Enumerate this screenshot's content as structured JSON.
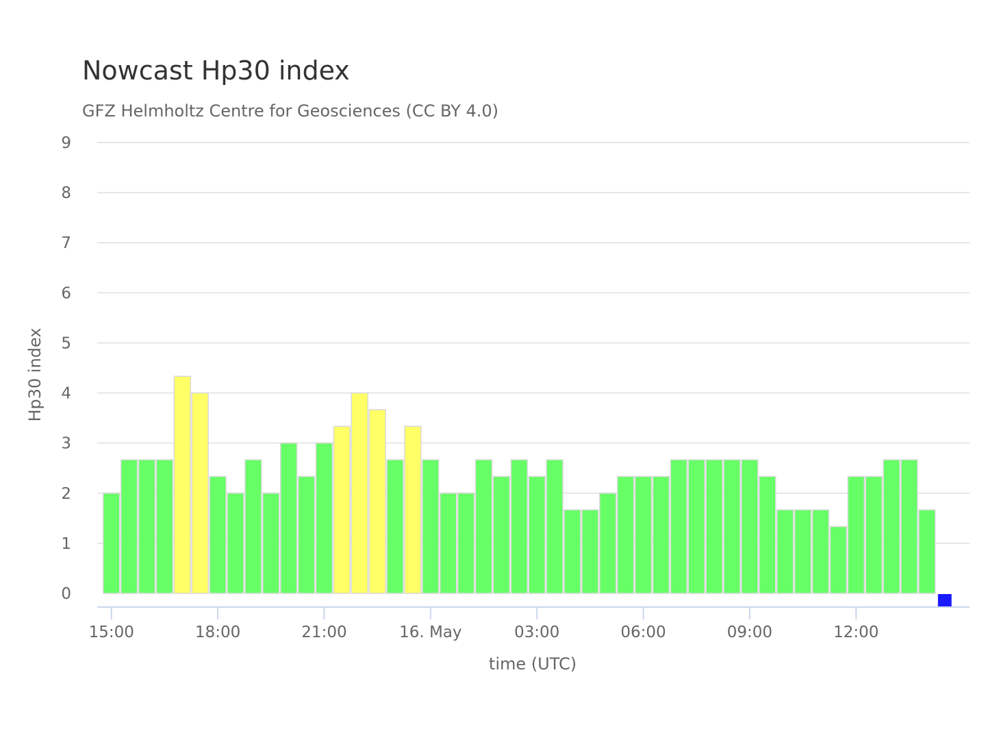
{
  "chart_data": {
    "type": "bar",
    "title": "Nowcast Hp30 index",
    "subtitle": "GFZ Helmholtz Centre for Geosciences (CC BY 4.0)",
    "xlabel": "time (UTC)",
    "ylabel": "Hp30 index",
    "ylim": [
      0,
      9
    ],
    "y_ticks": [
      0,
      1,
      2,
      3,
      4,
      5,
      6,
      7,
      8,
      9
    ],
    "grid": true,
    "legend": "none",
    "x_range_hours": [
      14.6,
      39.2
    ],
    "x_ticks": [
      {
        "hours": 15,
        "label": "15:00"
      },
      {
        "hours": 18,
        "label": "18:00"
      },
      {
        "hours": 21,
        "label": "21:00"
      },
      {
        "hours": 24,
        "label": "16. May"
      },
      {
        "hours": 27,
        "label": "03:00"
      },
      {
        "hours": 30,
        "label": "06:00"
      },
      {
        "hours": 33,
        "label": "09:00"
      },
      {
        "hours": 36,
        "label": "12:00"
      }
    ],
    "colors": {
      "green": "#66ff66",
      "yellow": "#ffff66",
      "blue": "#1a1aff"
    },
    "series": [
      {
        "bar_width_hours": 0.5,
        "bars": [
          {
            "x": 15.0,
            "value": 2.0,
            "color": "green"
          },
          {
            "x": 15.5,
            "value": 2.667,
            "color": "green"
          },
          {
            "x": 16.0,
            "value": 2.667,
            "color": "green"
          },
          {
            "x": 16.5,
            "value": 2.667,
            "color": "green"
          },
          {
            "x": 17.0,
            "value": 4.333,
            "color": "yellow"
          },
          {
            "x": 17.5,
            "value": 4.0,
            "color": "yellow"
          },
          {
            "x": 18.0,
            "value": 2.333,
            "color": "green"
          },
          {
            "x": 18.5,
            "value": 2.0,
            "color": "green"
          },
          {
            "x": 19.0,
            "value": 2.667,
            "color": "green"
          },
          {
            "x": 19.5,
            "value": 2.0,
            "color": "green"
          },
          {
            "x": 20.0,
            "value": 3.0,
            "color": "green"
          },
          {
            "x": 20.5,
            "value": 2.333,
            "color": "green"
          },
          {
            "x": 21.0,
            "value": 3.0,
            "color": "green"
          },
          {
            "x": 21.5,
            "value": 3.333,
            "color": "yellow"
          },
          {
            "x": 22.0,
            "value": 4.0,
            "color": "yellow"
          },
          {
            "x": 22.5,
            "value": 3.667,
            "color": "yellow"
          },
          {
            "x": 23.0,
            "value": 2.667,
            "color": "green"
          },
          {
            "x": 23.5,
            "value": 3.333,
            "color": "yellow"
          },
          {
            "x": 24.0,
            "value": 2.667,
            "color": "green"
          },
          {
            "x": 24.5,
            "value": 2.0,
            "color": "green"
          },
          {
            "x": 25.0,
            "value": 2.0,
            "color": "green"
          },
          {
            "x": 25.5,
            "value": 2.667,
            "color": "green"
          },
          {
            "x": 26.0,
            "value": 2.333,
            "color": "green"
          },
          {
            "x": 26.5,
            "value": 2.667,
            "color": "green"
          },
          {
            "x": 27.0,
            "value": 2.333,
            "color": "green"
          },
          {
            "x": 27.5,
            "value": 2.667,
            "color": "green"
          },
          {
            "x": 28.0,
            "value": 1.667,
            "color": "green"
          },
          {
            "x": 28.5,
            "value": 1.667,
            "color": "green"
          },
          {
            "x": 29.0,
            "value": 2.0,
            "color": "green"
          },
          {
            "x": 29.5,
            "value": 2.333,
            "color": "green"
          },
          {
            "x": 30.0,
            "value": 2.333,
            "color": "green"
          },
          {
            "x": 30.5,
            "value": 2.333,
            "color": "green"
          },
          {
            "x": 31.0,
            "value": 2.667,
            "color": "green"
          },
          {
            "x": 31.5,
            "value": 2.667,
            "color": "green"
          },
          {
            "x": 32.0,
            "value": 2.667,
            "color": "green"
          },
          {
            "x": 32.5,
            "value": 2.667,
            "color": "green"
          },
          {
            "x": 33.0,
            "value": 2.667,
            "color": "green"
          },
          {
            "x": 33.5,
            "value": 2.333,
            "color": "green"
          },
          {
            "x": 34.0,
            "value": 1.667,
            "color": "green"
          },
          {
            "x": 34.5,
            "value": 1.667,
            "color": "green"
          },
          {
            "x": 35.0,
            "value": 1.667,
            "color": "green"
          },
          {
            "x": 35.5,
            "value": 1.333,
            "color": "green"
          },
          {
            "x": 36.0,
            "value": 2.333,
            "color": "green"
          },
          {
            "x": 36.5,
            "value": 2.333,
            "color": "green"
          },
          {
            "x": 37.0,
            "value": 2.667,
            "color": "green"
          },
          {
            "x": 37.5,
            "value": 2.667,
            "color": "green"
          },
          {
            "x": 38.0,
            "value": 1.667,
            "color": "green"
          },
          {
            "x": 38.5,
            "value": 0.0,
            "color": "blue"
          }
        ]
      }
    ]
  }
}
